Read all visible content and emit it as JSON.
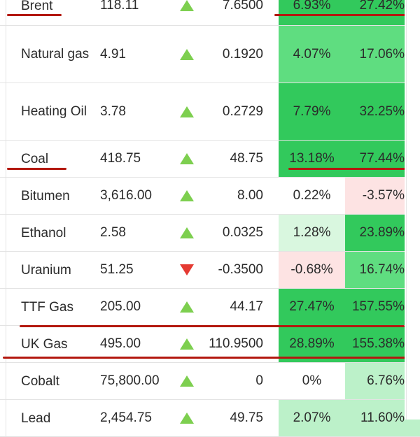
{
  "colors": {
    "up_arrow": "#7dcf4f",
    "down_arrow": "#e53a32",
    "annotation": "#b3180f",
    "strong_green": "#32c95c",
    "medium_green": "#5fdd80",
    "light_green": "#bcf1c9",
    "pale_green": "#d9f7df",
    "pale_red": "#fde3e3"
  },
  "rows": [
    {
      "name": "Brent",
      "price": "118.11",
      "dir": "up",
      "change": "7.6500",
      "pct1": "6.93%",
      "pct2": "27.42%",
      "pct1_bg": "#32c95c",
      "pct2_bg": "#32c95c"
    },
    {
      "name": "Natural gas",
      "price": "4.91",
      "dir": "up",
      "change": "0.1920",
      "pct1": "4.07%",
      "pct2": "17.06%",
      "pct1_bg": "#5fdd80",
      "pct2_bg": "#5fdd80"
    },
    {
      "name": "Heating Oil",
      "price": "3.78",
      "dir": "up",
      "change": "0.2729",
      "pct1": "7.79%",
      "pct2": "32.25%",
      "pct1_bg": "#32c95c",
      "pct2_bg": "#32c95c"
    },
    {
      "name": "Coal",
      "price": "418.75",
      "dir": "up",
      "change": "48.75",
      "pct1": "13.18%",
      "pct2": "77.44%",
      "pct1_bg": "#32c95c",
      "pct2_bg": "#32c95c"
    },
    {
      "name": "Bitumen",
      "price": "3,616.00",
      "dir": "up",
      "change": "8.00",
      "pct1": "0.22%",
      "pct2": "-3.57%",
      "pct1_bg": "#ffffff",
      "pct2_bg": "#fde3e3"
    },
    {
      "name": "Ethanol",
      "price": "2.58",
      "dir": "up",
      "change": "0.0325",
      "pct1": "1.28%",
      "pct2": "23.89%",
      "pct1_bg": "#d9f7df",
      "pct2_bg": "#32c95c"
    },
    {
      "name": "Uranium",
      "price": "51.25",
      "dir": "down",
      "change": "-0.3500",
      "pct1": "-0.68%",
      "pct2": "16.74%",
      "pct1_bg": "#fde3e3",
      "pct2_bg": "#5fdd80"
    },
    {
      "name": "TTF Gas",
      "price": "205.00",
      "dir": "up",
      "change": "44.17",
      "pct1": "27.47%",
      "pct2": "157.55%",
      "pct1_bg": "#32c95c",
      "pct2_bg": "#32c95c"
    },
    {
      "name": "UK Gas",
      "price": "495.00",
      "dir": "up",
      "change": "110.9500",
      "pct1": "28.89%",
      "pct2": "155.38%",
      "pct1_bg": "#32c95c",
      "pct2_bg": "#32c95c"
    },
    {
      "name": "Cobalt",
      "price": "75,800.00",
      "dir": "up",
      "change": "0",
      "pct1": "0%",
      "pct2": "6.76%",
      "pct1_bg": "#ffffff",
      "pct2_bg": "#bcf1c9"
    },
    {
      "name": "Lead",
      "price": "2,454.75",
      "dir": "up",
      "change": "49.75",
      "pct1": "2.07%",
      "pct2": "11.60%",
      "pct1_bg": "#bcf1c9",
      "pct2_bg": "#bcf1c9"
    }
  ]
}
